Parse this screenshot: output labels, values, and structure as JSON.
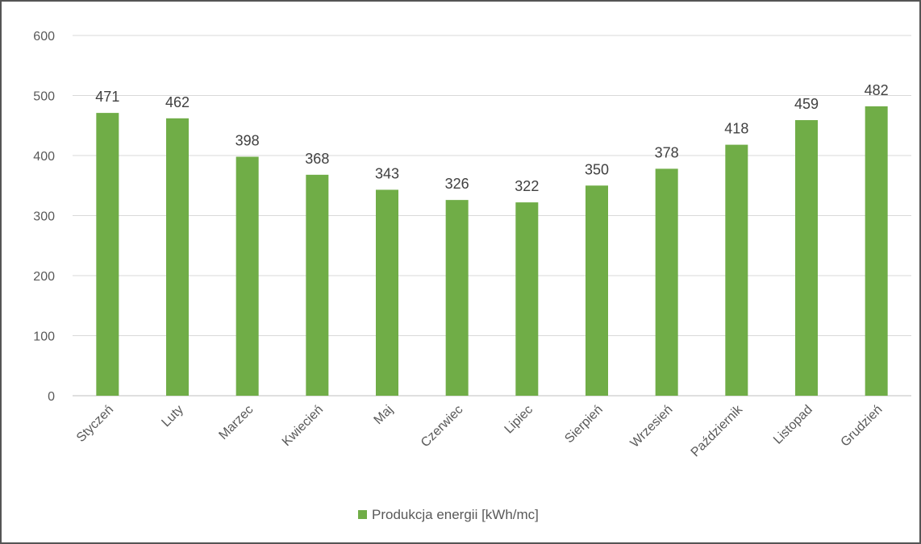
{
  "chart_data": {
    "type": "bar",
    "categories": [
      "Styczeń",
      "Luty",
      "Marzec",
      "Kwiecień",
      "Maj",
      "Czerwiec",
      "Lipiec",
      "Sierpień",
      "Wrzesień",
      "Październik",
      "Listopad",
      "Grudzień"
    ],
    "series": [
      {
        "name": "Produkcja energii [kWh/mc]",
        "values": [
          471,
          462,
          398,
          368,
          343,
          326,
          322,
          350,
          378,
          418,
          459,
          482
        ],
        "color": "#70ad47"
      }
    ],
    "ylim": [
      0,
      600
    ],
    "yticks": [
      0,
      100,
      200,
      300,
      400,
      500,
      600
    ],
    "grid": true,
    "legend": "bottom",
    "data_labels": true
  }
}
